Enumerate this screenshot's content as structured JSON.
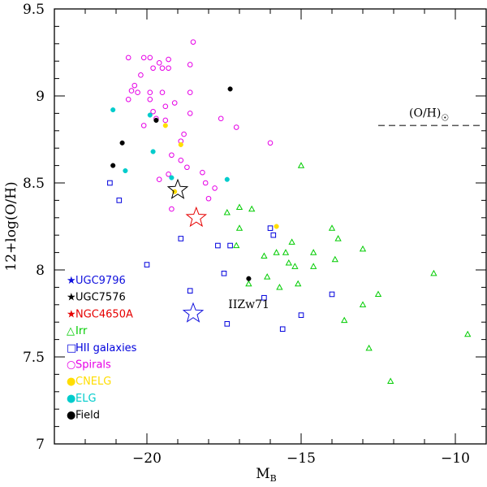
{
  "chart_data": {
    "type": "scatter",
    "title": "",
    "xlabel": "M",
    "xlabel_sub": "B",
    "ylabel": "12+log(O/H)",
    "xlim": [
      -23,
      -9
    ],
    "ylim": [
      7,
      9.5
    ],
    "xticks_major": [
      -20,
      -15,
      -10
    ],
    "xtick_labels": [
      "−20",
      "−15",
      "−10"
    ],
    "yticks_major": [
      7,
      7.5,
      8,
      8.5,
      9,
      9.5
    ],
    "ytick_labels": [
      "7",
      "7.5",
      "8",
      "8.5",
      "9",
      "9.5"
    ],
    "grid": false,
    "solar_line": {
      "y": 8.83,
      "x_from": -12.5,
      "x_to": -9.2,
      "label": "(O/H)",
      "symbol": "☉",
      "color": "#555555"
    },
    "annotations": [
      {
        "text": "IIZw71",
        "x": -16.8,
        "y": 7.85
      }
    ],
    "series": [
      {
        "name": "Spirals",
        "marker": "open-circle",
        "color": "#e600e6",
        "points": [
          [
            -20.6,
            9.22
          ],
          [
            -20.1,
            9.22
          ],
          [
            -19.9,
            9.22
          ],
          [
            -19.6,
            9.19
          ],
          [
            -19.3,
            9.21
          ],
          [
            -18.5,
            9.31
          ],
          [
            -20.2,
            9.12
          ],
          [
            -19.8,
            9.16
          ],
          [
            -19.5,
            9.16
          ],
          [
            -19.3,
            9.16
          ],
          [
            -18.6,
            9.18
          ],
          [
            -20.4,
            9.06
          ],
          [
            -20.5,
            9.03
          ],
          [
            -20.3,
            9.02
          ],
          [
            -19.9,
            9.02
          ],
          [
            -19.9,
            8.98
          ],
          [
            -19.5,
            9.02
          ],
          [
            -18.6,
            9.02
          ],
          [
            -20.6,
            8.98
          ],
          [
            -19.8,
            8.91
          ],
          [
            -20.1,
            8.83
          ],
          [
            -19.4,
            8.94
          ],
          [
            -19.1,
            8.96
          ],
          [
            -18.6,
            8.9
          ],
          [
            -19.7,
            8.87
          ],
          [
            -19.4,
            8.86
          ],
          [
            -18.8,
            8.78
          ],
          [
            -18.9,
            8.74
          ],
          [
            -19.2,
            8.66
          ],
          [
            -18.9,
            8.63
          ],
          [
            -19.3,
            8.55
          ],
          [
            -19.6,
            8.52
          ],
          [
            -18.7,
            8.59
          ],
          [
            -18.2,
            8.56
          ],
          [
            -18.1,
            8.5
          ],
          [
            -17.8,
            8.47
          ],
          [
            -18.0,
            8.41
          ],
          [
            -19.2,
            8.35
          ],
          [
            -17.6,
            8.87
          ],
          [
            -17.1,
            8.82
          ],
          [
            -16.0,
            8.73
          ]
        ]
      },
      {
        "name": "Irr",
        "marker": "open-triangle",
        "color": "#00cc00",
        "points": [
          [
            -15.0,
            8.6
          ],
          [
            -17.0,
            8.36
          ],
          [
            -17.4,
            8.33
          ],
          [
            -16.6,
            8.35
          ],
          [
            -17.0,
            8.24
          ],
          [
            -17.1,
            8.14
          ],
          [
            -15.3,
            8.16
          ],
          [
            -14.0,
            8.24
          ],
          [
            -13.8,
            8.18
          ],
          [
            -13.0,
            8.12
          ],
          [
            -15.8,
            8.1
          ],
          [
            -16.2,
            8.08
          ],
          [
            -15.5,
            8.1
          ],
          [
            -14.6,
            8.1
          ],
          [
            -15.4,
            8.04
          ],
          [
            -15.2,
            8.02
          ],
          [
            -14.6,
            8.02
          ],
          [
            -13.9,
            8.06
          ],
          [
            -16.1,
            7.96
          ],
          [
            -16.7,
            7.92
          ],
          [
            -15.1,
            7.92
          ],
          [
            -15.7,
            7.9
          ],
          [
            -12.5,
            7.86
          ],
          [
            -13.0,
            7.8
          ],
          [
            -13.6,
            7.71
          ],
          [
            -10.7,
            7.98
          ],
          [
            -9.6,
            7.63
          ],
          [
            -12.8,
            7.55
          ],
          [
            -12.1,
            7.36
          ]
        ]
      },
      {
        "name": "HII galaxies",
        "marker": "open-square",
        "color": "#0000dd",
        "points": [
          [
            -21.2,
            8.5
          ],
          [
            -20.9,
            8.4
          ],
          [
            -20.0,
            8.03
          ],
          [
            -18.9,
            8.18
          ],
          [
            -18.6,
            7.88
          ],
          [
            -17.7,
            8.14
          ],
          [
            -17.3,
            8.14
          ],
          [
            -17.5,
            7.98
          ],
          [
            -16.0,
            8.24
          ],
          [
            -15.9,
            8.2
          ],
          [
            -17.4,
            7.69
          ],
          [
            -16.2,
            7.84
          ],
          [
            -15.0,
            7.74
          ],
          [
            -14.0,
            7.86
          ],
          [
            -15.6,
            7.66
          ]
        ]
      },
      {
        "name": "CNELG",
        "marker": "filled-circle",
        "color": "#ffdd00",
        "points": [
          [
            -19.4,
            8.83
          ],
          [
            -18.9,
            8.72
          ],
          [
            -19.1,
            8.45
          ],
          [
            -15.8,
            8.25
          ]
        ]
      },
      {
        "name": "ELG",
        "marker": "filled-circle",
        "color": "#00cccc",
        "points": [
          [
            -21.1,
            8.92
          ],
          [
            -19.9,
            8.89
          ],
          [
            -19.8,
            8.68
          ],
          [
            -20.7,
            8.57
          ],
          [
            -19.2,
            8.53
          ],
          [
            -17.4,
            8.52
          ]
        ]
      },
      {
        "name": "Field",
        "marker": "filled-circle",
        "color": "#000000",
        "points": [
          [
            -17.3,
            9.04
          ],
          [
            -19.7,
            8.86
          ],
          [
            -20.8,
            8.73
          ],
          [
            -21.1,
            8.6
          ],
          [
            -16.7,
            7.95
          ]
        ]
      },
      {
        "name": "UGC9796",
        "marker": "open-star",
        "color": "#1010dd",
        "points": [
          [
            -18.5,
            7.75
          ]
        ]
      },
      {
        "name": "UGC7576",
        "marker": "open-star",
        "color": "#000000",
        "points": [
          [
            -19.0,
            8.46
          ]
        ]
      },
      {
        "name": "NGC4650A",
        "marker": "open-star",
        "color": "#e60000",
        "points": [
          [
            -18.4,
            8.3
          ]
        ]
      }
    ],
    "legend": {
      "placement": "bottom-left",
      "entries": [
        {
          "label": "UGC9796",
          "symbol": "★",
          "color": "#1010dd"
        },
        {
          "label": "UGC7576",
          "symbol": "★",
          "color": "#000000"
        },
        {
          "label": "NGC4650A",
          "symbol": "★",
          "color": "#e60000"
        },
        {
          "label": "Irr",
          "symbol": "△",
          "color": "#00cc00"
        },
        {
          "label": "HII galaxies",
          "symbol": "□",
          "color": "#0000dd"
        },
        {
          "label": "Spirals",
          "symbol": "○",
          "color": "#e600e6"
        },
        {
          "label": "CNELG",
          "symbol": "●",
          "color": "#ffdd00"
        },
        {
          "label": "ELG",
          "symbol": "●",
          "color": "#00cccc"
        },
        {
          "label": "Field",
          "symbol": "●",
          "color": "#000000"
        }
      ]
    }
  }
}
